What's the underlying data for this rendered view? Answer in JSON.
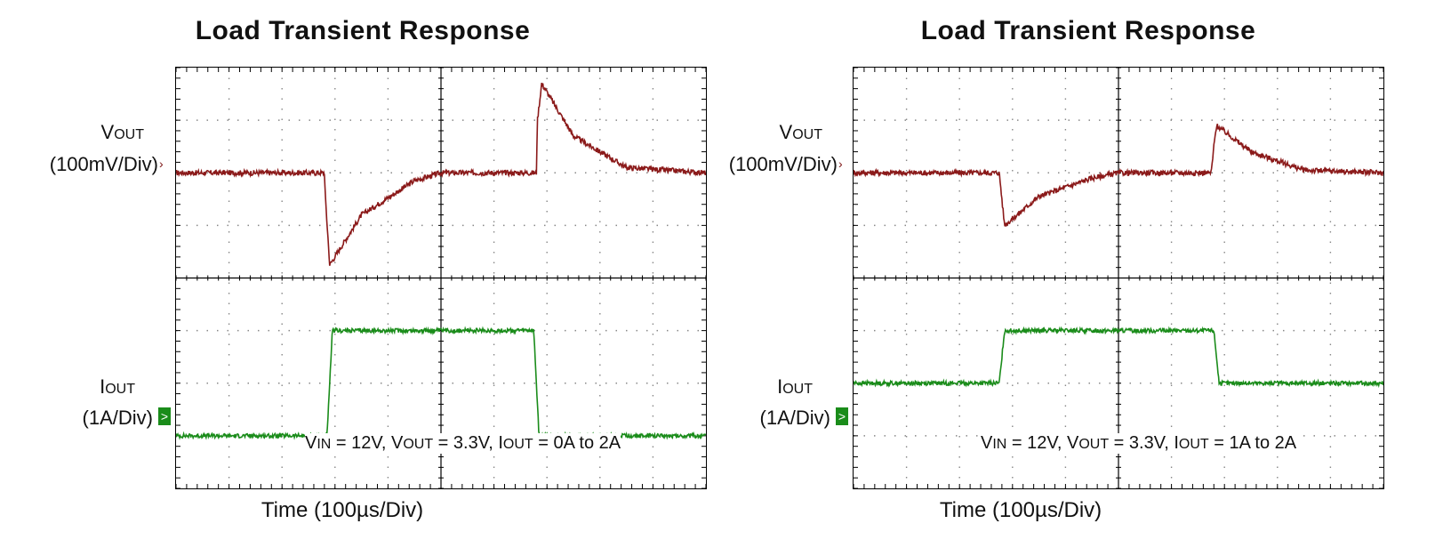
{
  "charts": [
    {
      "title": "Load Transient Response",
      "vout_label_main": "V",
      "vout_label_sub": "OUT",
      "vout_scale": "(100mV/Div)",
      "iout_label_main": "I",
      "iout_label_sub": "OUT",
      "iout_scale": "(1A/Div)",
      "conditions": {
        "vin": "V",
        "vin_sub": "IN",
        "vin_val": " = 12V, ",
        "vout": "V",
        "vout_sub": "OUT",
        "vout_val": " = 3.3V, ",
        "iout": "I",
        "iout_sub": "OUT",
        "iout_val": " = 0A to 2A"
      },
      "xlabel": "Time (100µs/Div)"
    },
    {
      "title": "Load Transient Response",
      "vout_label_main": "V",
      "vout_label_sub": "OUT",
      "vout_scale": "(100mV/Div)",
      "iout_label_main": "I",
      "iout_label_sub": "OUT",
      "iout_scale": "(1A/Div)",
      "conditions": {
        "vin": "V",
        "vin_sub": "IN",
        "vin_val": " = 12V, ",
        "vout": "V",
        "vout_sub": "OUT",
        "vout_val": " = 3.3V, ",
        "iout": "I",
        "iout_sub": "OUT",
        "iout_val": " = 1A to 2A"
      },
      "xlabel": "Time (100µs/Div)"
    }
  ],
  "colors": {
    "vout": "#8b1a1a",
    "iout": "#1a8c1a",
    "grid": "#888888"
  },
  "chart_data": [
    {
      "type": "line",
      "title": "Load Transient Response",
      "xlabel": "Time (100µs/Div)",
      "divisions": {
        "x": 10,
        "y": 8
      },
      "series": [
        {
          "name": "VOUT",
          "x": [
            0,
            2.8,
            2.82,
            2.9,
            3.5,
            4.5,
            5.0,
            6.8,
            6.82,
            6.9,
            7.5,
            8.5,
            10
          ],
          "y": [
            0,
            0,
            -0.5,
            -1.75,
            -0.8,
            -0.15,
            0,
            0,
            1.0,
            1.7,
            0.7,
            0.1,
            0
          ]
        },
        {
          "name": "IOUT",
          "x": [
            0,
            2.85,
            2.95,
            6.75,
            6.85,
            10
          ],
          "y": [
            0,
            0,
            2,
            2,
            0,
            0
          ]
        }
      ]
    },
    {
      "type": "line",
      "title": "Load Transient Response",
      "xlabel": "Time (100µs/Div)",
      "divisions": {
        "x": 10,
        "y": 8
      },
      "series": [
        {
          "name": "VOUT",
          "x": [
            0,
            2.75,
            2.8,
            2.85,
            3.5,
            4.5,
            5.0,
            6.75,
            6.8,
            6.85,
            7.5,
            8.5,
            10
          ],
          "y": [
            0,
            0,
            -0.5,
            -1.0,
            -0.45,
            -0.1,
            0,
            0,
            0.5,
            0.9,
            0.4,
            0.05,
            0
          ]
        },
        {
          "name": "IOUT",
          "x": [
            0,
            2.75,
            2.85,
            6.8,
            6.9,
            10
          ],
          "y": [
            1,
            1,
            2,
            2,
            1,
            1
          ]
        }
      ]
    }
  ]
}
